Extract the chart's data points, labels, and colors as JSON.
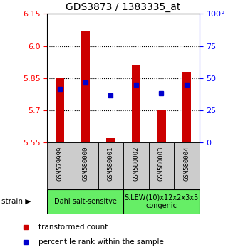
{
  "title": "GDS3873 / 1383335_at",
  "samples": [
    "GSM579999",
    "GSM580000",
    "GSM580001",
    "GSM580002",
    "GSM580003",
    "GSM580004"
  ],
  "bar_bottoms": [
    5.55,
    5.55,
    5.55,
    5.55,
    5.55,
    5.55
  ],
  "bar_tops": [
    5.85,
    6.07,
    5.57,
    5.91,
    5.7,
    5.88
  ],
  "blue_dots": [
    5.8,
    5.83,
    5.77,
    5.82,
    5.78,
    5.82
  ],
  "ylim": [
    5.55,
    6.15
  ],
  "yticks_left": [
    5.55,
    5.7,
    5.85,
    6.0,
    6.15
  ],
  "yticks_right_labels": [
    0,
    25,
    50,
    75,
    100
  ],
  "bar_color": "#cc0000",
  "dot_color": "#0000cc",
  "group1_label": "Dahl salt-sensitve",
  "group2_label": "S.LEW(10)x12x2x3x5\ncongenic",
  "group1_indices": [
    0,
    1,
    2
  ],
  "group2_indices": [
    3,
    4,
    5
  ],
  "group_color": "#66ee66",
  "sample_box_color": "#cccccc",
  "legend_red_label": "transformed count",
  "legend_blue_label": "percentile rank within the sample",
  "bar_width": 0.35
}
